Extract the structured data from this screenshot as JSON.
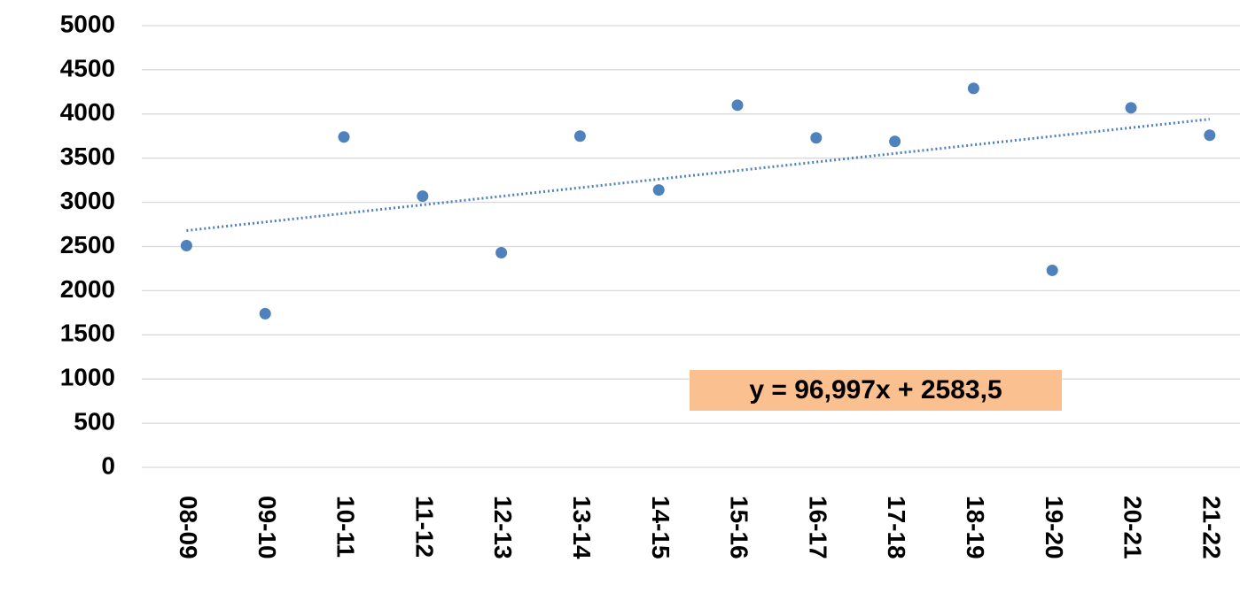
{
  "chart_data": {
    "type": "scatter",
    "categories": [
      "08-09",
      "09-10",
      "10-11",
      "11-12",
      "12-13",
      "13-14",
      "14-15",
      "15-16",
      "16-17",
      "17-18",
      "18-19",
      "19-20",
      "20-21",
      "21-22"
    ],
    "values": [
      2510,
      1740,
      3740,
      3070,
      2430,
      3750,
      3140,
      4100,
      3730,
      3690,
      4290,
      2230,
      4070,
      3760
    ],
    "color": "#4f81bd",
    "ylim": [
      0,
      5000
    ],
    "yticks": [
      0,
      500,
      1000,
      1500,
      2000,
      2500,
      3000,
      3500,
      4000,
      4500,
      5000
    ],
    "grid": true,
    "trendline": {
      "slope": 96.997,
      "intercept": 2583.5,
      "label": "y = 96,997x + 2583,5",
      "color": "#4f81bd",
      "box_color": "#fac090"
    }
  }
}
